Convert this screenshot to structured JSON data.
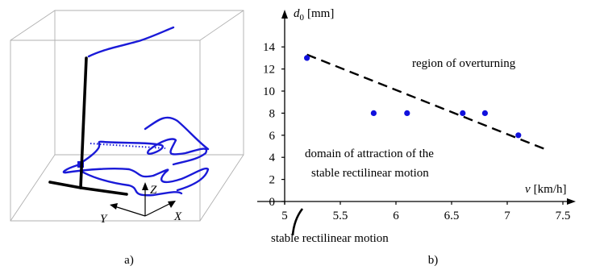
{
  "panel_a": {
    "label": "a)",
    "axis_labels": {
      "x": "X",
      "y": "Y",
      "z": "Z"
    }
  },
  "panel_b": {
    "label": "b)",
    "annotations": {
      "overturning": "region of overturning",
      "attraction_line1": "domain of attraction of the",
      "attraction_line2": "stable rectilinear motion",
      "stable_motion": "stable rectilinear motion"
    }
  },
  "chart_data": {
    "type": "scatter",
    "title": "",
    "xlabel_var": "v",
    "xlabel_unit": "[km/h]",
    "ylabel_var": "d",
    "ylabel_sub": "0",
    "ylabel_unit": "[mm]",
    "xlim": [
      5,
      7.7
    ],
    "ylim": [
      0,
      15
    ],
    "x_ticks": [
      5,
      5.5,
      6,
      6.5,
      7,
      7.5
    ],
    "x_tick_labels": [
      "5",
      "5.5",
      "6",
      "6.5",
      "7",
      "7.5"
    ],
    "y_ticks": [
      0,
      2,
      4,
      6,
      8,
      10,
      12,
      14
    ],
    "y_tick_labels": [
      "0",
      "2",
      "4",
      "6",
      "8",
      "10",
      "12",
      "14"
    ],
    "points": [
      {
        "x": 5.2,
        "y": 13
      },
      {
        "x": 5.8,
        "y": 8
      },
      {
        "x": 6.1,
        "y": 8
      },
      {
        "x": 6.6,
        "y": 8
      },
      {
        "x": 6.8,
        "y": 8
      },
      {
        "x": 7.1,
        "y": 6
      }
    ],
    "boundary_line": {
      "style": "dashed",
      "x": [
        5.2,
        7.35
      ],
      "y": [
        13.3,
        4.7
      ]
    },
    "marker_color": "#1111dd"
  }
}
